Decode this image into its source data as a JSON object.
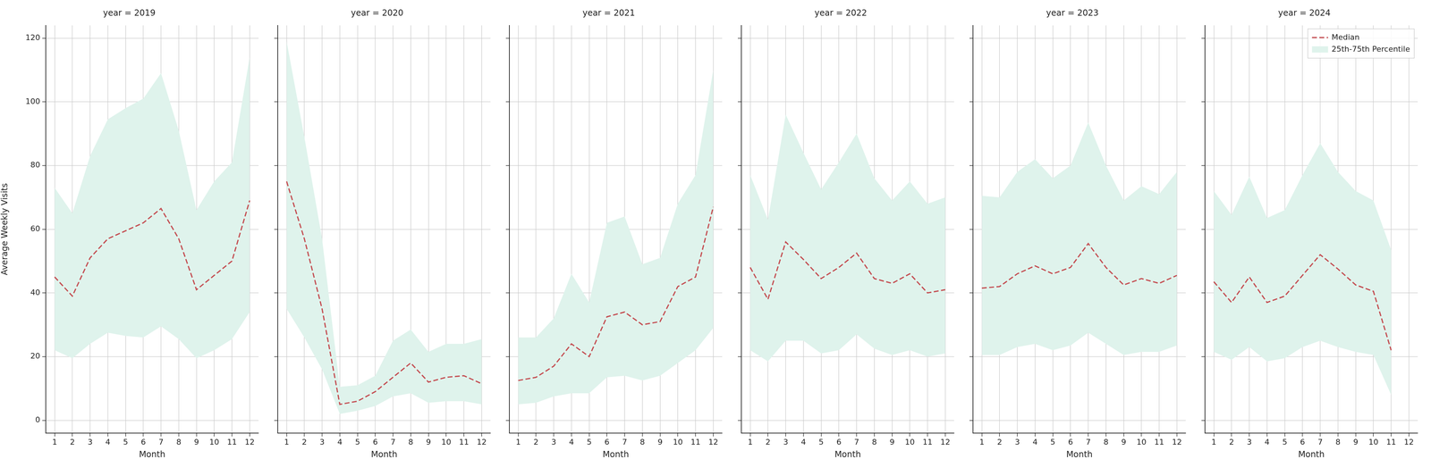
{
  "chart_data": [
    {
      "type": "line",
      "title": "year = 2019",
      "xlabel": "Month",
      "ylabel": "Average Weekly Visits",
      "categories": [
        1,
        2,
        3,
        4,
        5,
        6,
        7,
        8,
        9,
        10,
        11,
        12
      ],
      "ylim": [
        -4,
        124
      ],
      "yticks": [
        0,
        20,
        40,
        60,
        80,
        100,
        120
      ],
      "grid": true,
      "series": [
        {
          "name": "Median",
          "color": "#c44e52",
          "line_style": "dashed",
          "values": [
            45,
            39,
            51,
            57,
            59.5,
            62,
            66.5,
            57,
            41,
            45.5,
            50,
            69
          ]
        },
        {
          "name": "25th-75th Percentile",
          "type": "band",
          "color": "#dff3ec",
          "low": [
            22,
            19.5,
            24,
            27.5,
            26.5,
            26,
            29.5,
            25.5,
            19.5,
            22,
            25.5,
            34
          ],
          "high": [
            73,
            65,
            83,
            94.5,
            98,
            101,
            109,
            91,
            66,
            75,
            81,
            114
          ]
        }
      ]
    },
    {
      "type": "line",
      "title": "year = 2020",
      "xlabel": "Month",
      "tick_labels": "x",
      "categories": [
        1,
        2,
        3,
        4,
        5,
        6,
        7,
        8,
        9,
        10,
        11,
        12
      ],
      "ylim": [
        -4,
        124
      ],
      "yticks": [
        0,
        20,
        40,
        60,
        80,
        100,
        120
      ],
      "grid": true,
      "series": [
        {
          "name": "Median",
          "color": "#c44e52",
          "line_style": "dashed",
          "values": [
            75,
            57,
            35,
            5,
            6,
            9,
            13.5,
            18,
            12,
            13.5,
            14,
            11.5
          ]
        },
        {
          "name": "25th-75th Percentile",
          "type": "band",
          "color": "#dff3ec",
          "low": [
            35,
            26,
            16,
            2,
            3,
            4.5,
            7.5,
            8.5,
            5.5,
            6,
            6,
            5
          ],
          "high": [
            119,
            89,
            57,
            10.5,
            11,
            14,
            25,
            28.5,
            21.5,
            24,
            24,
            25.5
          ]
        }
      ]
    },
    {
      "type": "line",
      "title": "year = 2021",
      "xlabel": "Month",
      "tick_labels": "x",
      "categories": [
        1,
        2,
        3,
        4,
        5,
        6,
        7,
        8,
        9,
        10,
        11,
        12
      ],
      "ylim": [
        -4,
        124
      ],
      "yticks": [
        0,
        20,
        40,
        60,
        80,
        100,
        120
      ],
      "grid": true,
      "series": [
        {
          "name": "Median",
          "color": "#c44e52",
          "line_style": "dashed",
          "values": [
            12.5,
            13.5,
            17,
            24,
            20,
            32.5,
            34,
            30,
            31,
            42,
            45,
            67
          ]
        },
        {
          "name": "25th-75th Percentile",
          "type": "band",
          "color": "#dff3ec",
          "low": [
            5,
            5.5,
            7.5,
            8.5,
            8.5,
            13.5,
            14,
            12.5,
            14,
            18,
            22,
            29
          ],
          "high": [
            26,
            26,
            32,
            46,
            37,
            62,
            64,
            49,
            51,
            68,
            77,
            110
          ]
        }
      ]
    },
    {
      "type": "line",
      "title": "year = 2022",
      "xlabel": "Month",
      "tick_labels": "x",
      "categories": [
        1,
        2,
        3,
        4,
        5,
        6,
        7,
        8,
        9,
        10,
        11,
        12
      ],
      "ylim": [
        -4,
        124
      ],
      "yticks": [
        0,
        20,
        40,
        60,
        80,
        100,
        120
      ],
      "grid": true,
      "series": [
        {
          "name": "Median",
          "color": "#c44e52",
          "line_style": "dashed",
          "values": [
            48,
            38,
            56,
            50.5,
            44.5,
            48,
            52.5,
            44.5,
            43,
            46,
            40,
            41
          ]
        },
        {
          "name": "25th-75th Percentile",
          "type": "band",
          "color": "#dff3ec",
          "low": [
            22,
            18.5,
            25,
            25,
            21,
            22,
            27,
            22.5,
            20.5,
            22,
            20,
            21
          ],
          "high": [
            77,
            63,
            96,
            84,
            72.5,
            81,
            90,
            76,
            69,
            75,
            68,
            70
          ]
        }
      ]
    },
    {
      "type": "line",
      "title": "year = 2023",
      "xlabel": "Month",
      "tick_labels": "x",
      "categories": [
        1,
        2,
        3,
        4,
        5,
        6,
        7,
        8,
        9,
        10,
        11,
        12
      ],
      "ylim": [
        -4,
        124
      ],
      "yticks": [
        0,
        20,
        40,
        60,
        80,
        100,
        120
      ],
      "grid": true,
      "series": [
        {
          "name": "Median",
          "color": "#c44e52",
          "line_style": "dashed",
          "values": [
            41.5,
            42,
            46,
            48.5,
            46,
            48,
            55.5,
            48,
            42.5,
            44.5,
            43,
            45.5
          ]
        },
        {
          "name": "25th-75th Percentile",
          "type": "band",
          "color": "#dff3ec",
          "low": [
            20.5,
            20.5,
            23,
            24,
            22,
            23.5,
            27.5,
            24,
            20.5,
            21.5,
            21.5,
            23.5
          ],
          "high": [
            70.5,
            70,
            78,
            82,
            76,
            80,
            93.5,
            80,
            69,
            73.5,
            71,
            78
          ]
        }
      ]
    },
    {
      "type": "line",
      "title": "year = 2024",
      "xlabel": "Month",
      "tick_labels": "x",
      "legend": "upper right",
      "categories": [
        1,
        2,
        3,
        4,
        5,
        6,
        7,
        8,
        9,
        10,
        11,
        12
      ],
      "ylim": [
        -4,
        124
      ],
      "yticks": [
        0,
        20,
        40,
        60,
        80,
        100,
        120
      ],
      "grid": true,
      "series": [
        {
          "name": "Median",
          "color": "#c44e52",
          "line_style": "dashed",
          "values": [
            43.5,
            37,
            45,
            37,
            39,
            45.5,
            52,
            47.5,
            42.5,
            40.5,
            22,
            null
          ]
        },
        {
          "name": "25th-75th Percentile",
          "type": "band",
          "color": "#dff3ec",
          "low": [
            21.5,
            19,
            23,
            18.5,
            19.5,
            23,
            25,
            23,
            21.5,
            20.5,
            8,
            null
          ],
          "high": [
            72,
            64.5,
            76.5,
            63.5,
            66,
            77,
            87,
            78,
            72,
            69,
            53.5,
            null
          ]
        }
      ]
    }
  ]
}
